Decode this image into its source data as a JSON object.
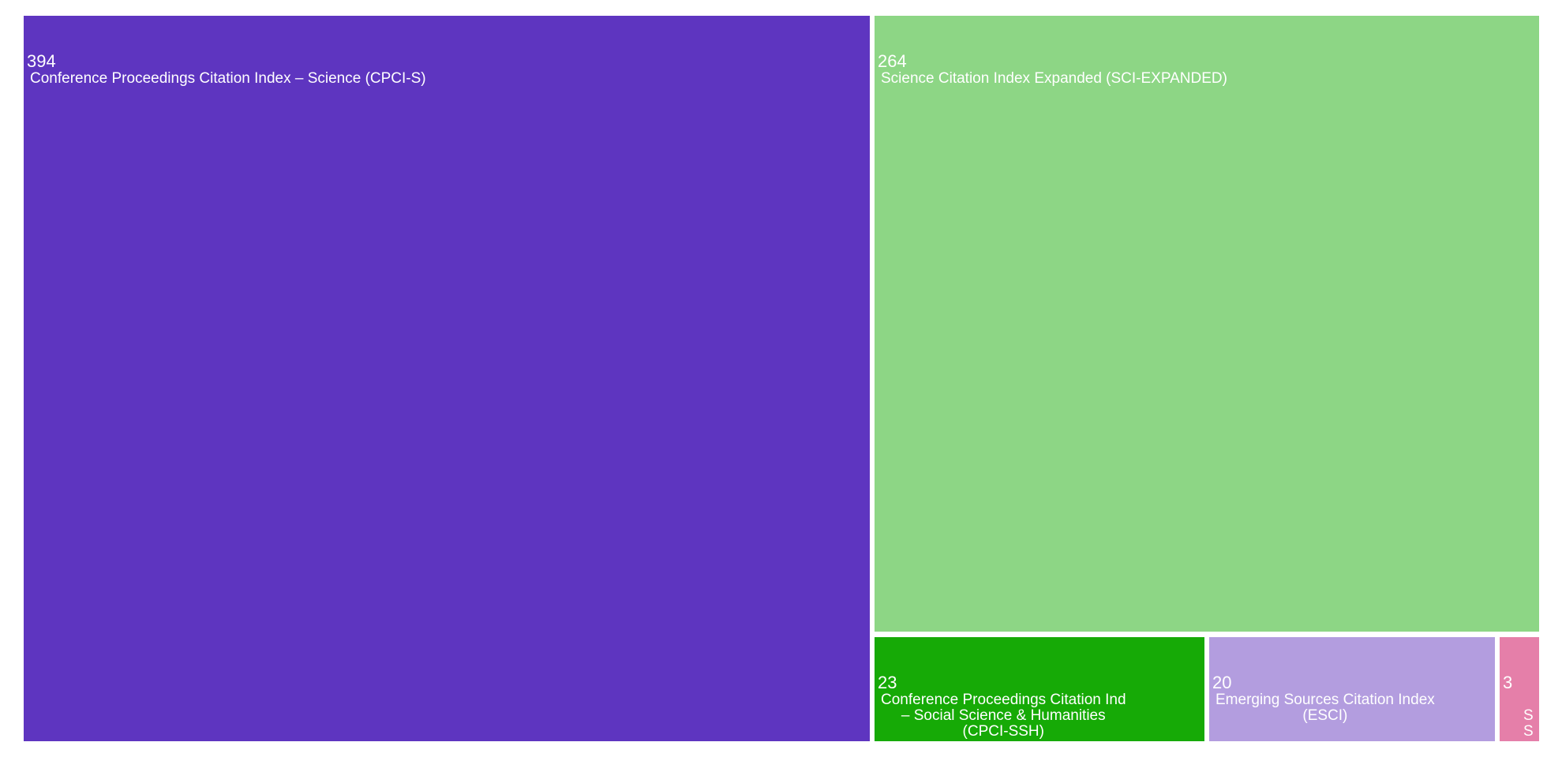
{
  "chart_data": {
    "type": "treemap",
    "items": [
      {
        "value": 394,
        "label": "Conference Proceedings Citation Index – Science (CPCI-S)",
        "color": "#5e35c0"
      },
      {
        "value": 264,
        "label": "Science Citation Index Expanded (SCI-EXPANDED)",
        "color": "#8dd685"
      },
      {
        "value": 23,
        "label": "Conference Proceedings Citation Ind\n– Social Science & Humanities\n(CPCI-SSH)",
        "color": "#16aa06"
      },
      {
        "value": 20,
        "label": "Emerging Sources Citation Index\n(ESCI)",
        "color": "#b39ddf"
      },
      {
        "value": 3,
        "label": "S\nS",
        "color": "#e57fa9"
      }
    ]
  }
}
